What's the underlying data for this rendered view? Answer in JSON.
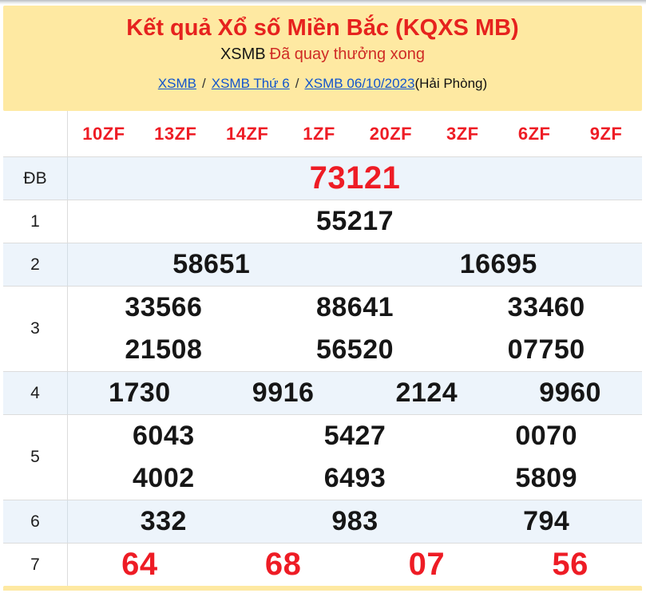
{
  "header": {
    "title": "Kết quả Xổ số Miền Bắc (KQXS MB)",
    "subtitle_prefix": "XSMB",
    "subtitle_status": "Đã quay thưởng xong",
    "breadcrumb_links": [
      "XSMB",
      "XSMB Thứ 6",
      "XSMB 06/10/2023"
    ],
    "breadcrumb_separator": "/",
    "breadcrumb_suffix": "(Hải Phòng)"
  },
  "table": {
    "column_headers": [
      "10ZF",
      "13ZF",
      "14ZF",
      "1ZF",
      "20ZF",
      "3ZF",
      "6ZF",
      "9ZF"
    ],
    "rows": [
      {
        "label": "ĐB",
        "lines": [
          [
            "73121"
          ]
        ],
        "shaded": true,
        "highlight": true
      },
      {
        "label": "1",
        "lines": [
          [
            "55217"
          ]
        ],
        "shaded": false,
        "highlight": false
      },
      {
        "label": "2",
        "lines": [
          [
            "58651",
            "16695"
          ]
        ],
        "shaded": true,
        "highlight": false
      },
      {
        "label": "3",
        "lines": [
          [
            "33566",
            "88641",
            "33460"
          ],
          [
            "21508",
            "56520",
            "07750"
          ]
        ],
        "shaded": false,
        "highlight": false
      },
      {
        "label": "4",
        "lines": [
          [
            "1730",
            "9916",
            "2124",
            "9960"
          ]
        ],
        "shaded": true,
        "highlight": false
      },
      {
        "label": "5",
        "lines": [
          [
            "6043",
            "5427",
            "0070"
          ],
          [
            "4002",
            "6493",
            "5809"
          ]
        ],
        "shaded": false,
        "highlight": false
      },
      {
        "label": "6",
        "lines": [
          [
            "332",
            "983",
            "794"
          ]
        ],
        "shaded": true,
        "highlight": false
      },
      {
        "label": "7",
        "lines": [
          [
            "64",
            "68",
            "07",
            "56"
          ]
        ],
        "shaded": false,
        "highlight": true
      }
    ]
  },
  "colors": {
    "header_bg": "#fee9a2",
    "accent_red": "#e6221e",
    "number_red": "#ee1c25",
    "link_blue": "#1155cc",
    "shaded_row_bg": "#edf4fb",
    "border": "#dcdcdc",
    "text_black": "#161616"
  }
}
